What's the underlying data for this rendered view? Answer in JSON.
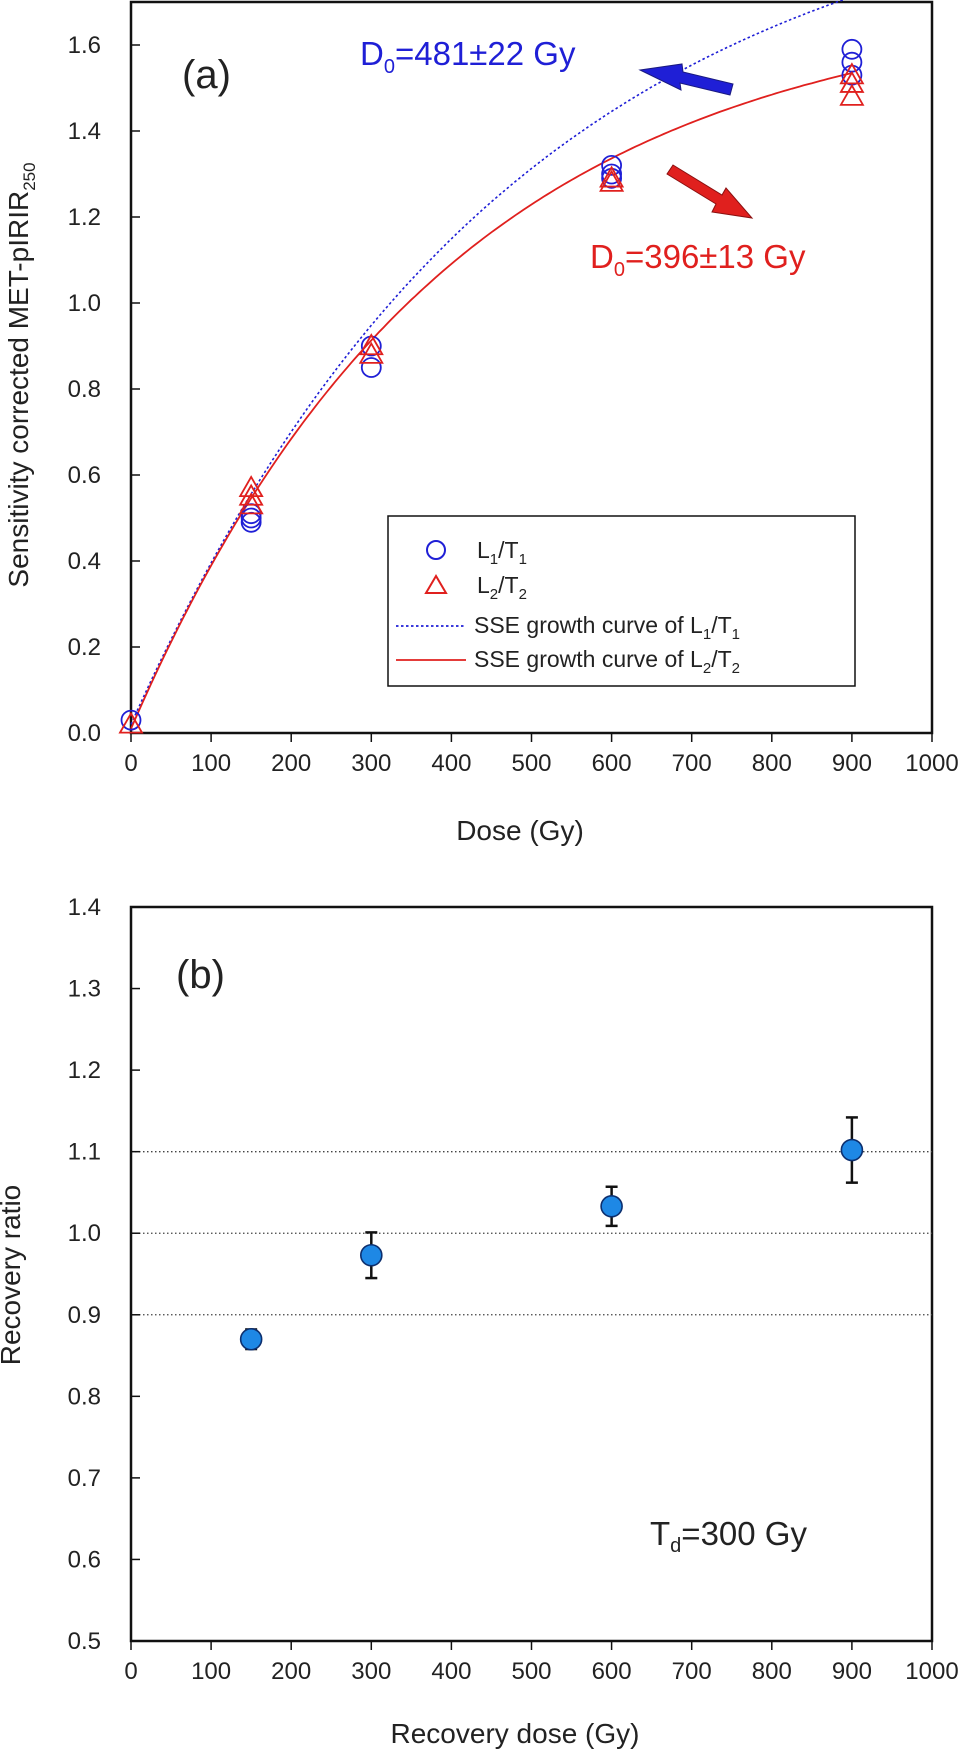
{
  "chart_data": [
    {
      "type": "scatter",
      "panel_label": "(a)",
      "xlabel": "Dose (Gy)",
      "ylabel": {
        "main": "Sensitivity corrected MET-pIRIR",
        "sub": "250"
      },
      "xlim": [
        0,
        1000
      ],
      "ylim": [
        0,
        1.7
      ],
      "xticks": [
        0,
        100,
        200,
        300,
        400,
        500,
        600,
        700,
        800,
        900,
        1000
      ],
      "yticks": [
        0.0,
        0.2,
        0.4,
        0.6,
        0.8,
        1.0,
        1.2,
        1.4,
        1.6
      ],
      "ytick_labels": [
        "0.0",
        "0.2",
        "0.4",
        "0.6",
        "0.8",
        "1.0",
        "1.2",
        "1.4",
        "1.6"
      ],
      "grid": false,
      "legend_position": "lower-right",
      "series": [
        {
          "name": "L1/T1",
          "label": {
            "a": "L",
            "a_sub": "1",
            "b": "/T",
            "b_sub": "1"
          },
          "marker": "circle",
          "color": "#1f1fd6",
          "x": [
            0,
            150,
            150,
            150,
            300,
            300,
            600,
            600,
            600,
            900,
            900,
            900
          ],
          "y": [
            0.03,
            0.49,
            0.5,
            0.51,
            0.85,
            0.9,
            1.29,
            1.3,
            1.32,
            1.53,
            1.56,
            1.59
          ]
        },
        {
          "name": "L2/T2",
          "label": {
            "a": "L",
            "a_sub": "2",
            "b": "/T",
            "b_sub": "2"
          },
          "marker": "triangle",
          "color": "#e0201e",
          "x": [
            0,
            150,
            150,
            150,
            300,
            300,
            600,
            600,
            900,
            900,
            900
          ],
          "y": [
            0.02,
            0.53,
            0.55,
            0.57,
            0.88,
            0.9,
            1.28,
            1.29,
            1.48,
            1.51,
            1.53
          ]
        }
      ],
      "fits": [
        {
          "name": "SSE growth curve of L1/T1",
          "label": {
            "prefix": "SSE growth curve of L",
            "s1": "1",
            "mid": "/T",
            "s2": "1"
          },
          "style": "dotted",
          "color": "#1f1fd6",
          "model": "saturating-exponential",
          "a": 2.0,
          "d0": 481,
          "c": 0.02
        },
        {
          "name": "SSE growth curve of L2/T2",
          "label": {
            "prefix": "SSE growth curve of L",
            "s1": "2",
            "mid": "/T",
            "s2": "2"
          },
          "style": "solid",
          "color": "#e0201e",
          "model": "saturating-exponential",
          "a": 1.7,
          "d0": 396,
          "c": 0.01
        }
      ],
      "annotations": [
        {
          "pre": "D",
          "sub": "0",
          "post": "=481±22 Gy",
          "color": "#1f1fd6"
        },
        {
          "pre": "D",
          "sub": "0",
          "post": "=396±13 Gy",
          "color": "#e0201e"
        }
      ]
    },
    {
      "type": "scatter",
      "panel_label": "(b)",
      "xlabel": "Recovery dose (Gy)",
      "ylabel": "Recovery ratio",
      "xlim": [
        0,
        1000
      ],
      "ylim": [
        0.5,
        1.4
      ],
      "xticks": [
        0,
        100,
        200,
        300,
        400,
        500,
        600,
        700,
        800,
        900,
        1000
      ],
      "yticks": [
        0.5,
        0.6,
        0.7,
        0.8,
        0.9,
        1.0,
        1.1,
        1.2,
        1.3,
        1.4
      ],
      "ytick_labels": [
        "0.5",
        "0.6",
        "0.7",
        "0.8",
        "0.9",
        "1.0",
        "1.1",
        "1.2",
        "1.3",
        "1.4"
      ],
      "grid": false,
      "reference_lines": [
        0.9,
        1.0,
        1.1
      ],
      "series": [
        {
          "marker": "filled-circle",
          "color": "#1e88e5",
          "x": [
            150,
            300,
            600,
            900
          ],
          "y": [
            0.87,
            0.973,
            1.033,
            1.102
          ],
          "err": [
            0.012,
            0.028,
            0.024,
            0.04
          ]
        }
      ],
      "annotation": {
        "pre": "T",
        "sub": "d",
        "post": "=300 Gy"
      }
    }
  ]
}
